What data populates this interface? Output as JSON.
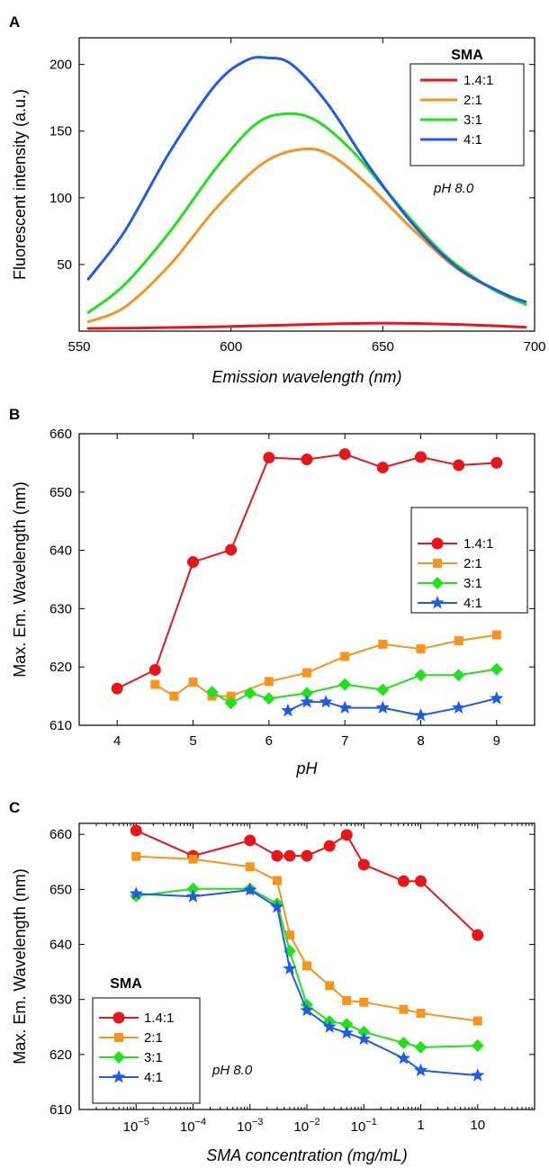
{
  "colors": {
    "1.4:1": "#e8161b",
    "2:1": "#f7941d",
    "3:1": "#22e01b",
    "4:1": "#1f5be8"
  },
  "chart_data": [
    {
      "panel": "A",
      "type": "line",
      "xlabel": "Emission wavelength (nm)",
      "ylabel": "Fluorescent intensity (a.u.)",
      "xlim": [
        550,
        700
      ],
      "ylim": [
        0,
        220
      ],
      "xticks": [
        550,
        600,
        650,
        700
      ],
      "yticks": [
        50,
        100,
        150,
        200
      ],
      "legend": {
        "title": "SMA",
        "placement": "top-right"
      },
      "annotation": "pH 8.0",
      "series": [
        {
          "name": "1.4:1",
          "x": [
            553,
            575,
            600,
            625,
            650,
            675,
            697
          ],
          "y": [
            2,
            2.5,
            3.5,
            5,
            6,
            5,
            3
          ]
        },
        {
          "name": "2:1",
          "x": [
            553,
            565,
            580,
            595,
            610,
            622,
            632,
            645,
            660,
            675,
            690,
            697
          ],
          "y": [
            7,
            18,
            50,
            92,
            125,
            136,
            133,
            110,
            76,
            46,
            28,
            22
          ]
        },
        {
          "name": "3:1",
          "x": [
            553,
            565,
            580,
            595,
            608,
            618,
            628,
            640,
            655,
            670,
            685,
            697
          ],
          "y": [
            14,
            35,
            75,
            122,
            155,
            163,
            158,
            135,
            95,
            58,
            33,
            20
          ]
        },
        {
          "name": "4:1",
          "x": [
            553,
            565,
            580,
            595,
            605,
            612,
            620,
            632,
            645,
            660,
            675,
            690,
            697
          ],
          "y": [
            39,
            75,
            135,
            185,
            203,
            205,
            200,
            170,
            125,
            80,
            47,
            28,
            22
          ]
        }
      ]
    },
    {
      "panel": "B",
      "type": "line",
      "xlabel": "pH",
      "ylabel": "Max. Em. Wavelength (nm)",
      "xlim": [
        3.5,
        9.5
      ],
      "ylim": [
        610,
        660
      ],
      "xticks": [
        4,
        5,
        6,
        7,
        8,
        9
      ],
      "yticks": [
        610,
        620,
        630,
        640,
        650,
        660
      ],
      "legend": {
        "title": "SMA",
        "placement": "right"
      },
      "series": [
        {
          "name": "1.4:1",
          "marker": "circle",
          "x": [
            4,
            4.5,
            5,
            5.5,
            6,
            6.5,
            7,
            7.5,
            8,
            8.5,
            9
          ],
          "y": [
            616.3,
            619.5,
            638,
            640.1,
            655.9,
            655.6,
            656.5,
            654.2,
            656,
            654.6,
            655
          ]
        },
        {
          "name": "2:1",
          "marker": "square",
          "x": [
            4.5,
            4.75,
            5,
            5.25,
            5.5,
            6,
            6.5,
            7,
            7.5,
            8,
            8.5,
            9
          ],
          "y": [
            617,
            615,
            617.4,
            615,
            615,
            617.5,
            619,
            621.8,
            623.9,
            623.1,
            624.5,
            625.5
          ]
        },
        {
          "name": "3:1",
          "marker": "diamond",
          "x": [
            5.25,
            5.5,
            5.75,
            6,
            6.5,
            7,
            7.5,
            8,
            8.5,
            9
          ],
          "y": [
            615.7,
            613.8,
            615.5,
            614.6,
            615.5,
            617,
            616.1,
            618.6,
            618.6,
            619.6
          ]
        },
        {
          "name": "4:1",
          "marker": "star",
          "x": [
            6.25,
            6.5,
            6.75,
            7,
            7.5,
            8,
            8.5,
            9
          ],
          "y": [
            612.5,
            614,
            614,
            613,
            613,
            611.7,
            613,
            614.6
          ]
        }
      ]
    },
    {
      "panel": "C",
      "type": "line",
      "xscale": "log",
      "xlabel": "SMA concentration (mg/mL)",
      "ylabel": "Max. Em. Wavelength (nm)",
      "xlim": [
        1e-06,
        100
      ],
      "ylim": [
        610,
        662
      ],
      "xticks": [
        "10^-5",
        "10^-4",
        "10^-3",
        "10^-2",
        "10^-1",
        "1",
        "10"
      ],
      "yticks": [
        610,
        620,
        630,
        640,
        650,
        660
      ],
      "legend": {
        "title": "SMA",
        "placement": "bottom-left"
      },
      "annotation": "pH 8.0",
      "series": [
        {
          "name": "1.4:1",
          "marker": "circle",
          "x": [
            1e-05,
            0.0001,
            0.001,
            0.003,
            0.005,
            0.01,
            0.025,
            0.05,
            0.1,
            0.5,
            1,
            10
          ],
          "y": [
            660.7,
            656.1,
            658.9,
            656.1,
            656.1,
            656.1,
            657.9,
            659.9,
            654.5,
            651.5,
            651.5,
            641.7
          ]
        },
        {
          "name": "2:1",
          "marker": "square",
          "x": [
            1e-05,
            0.0001,
            0.001,
            0.003,
            0.005,
            0.01,
            0.025,
            0.05,
            0.1,
            0.5,
            1,
            10
          ],
          "y": [
            656,
            655.5,
            654.1,
            651.6,
            641.7,
            636.1,
            632.5,
            629.8,
            629.5,
            628.2,
            627.5,
            626.1
          ]
        },
        {
          "name": "3:1",
          "marker": "diamond",
          "x": [
            1e-05,
            0.0001,
            0.001,
            0.003,
            0.005,
            0.01,
            0.025,
            0.05,
            0.1,
            0.5,
            1,
            10
          ],
          "y": [
            648.8,
            650.1,
            650.1,
            647.4,
            638.8,
            629,
            626,
            625.5,
            624.1,
            622.1,
            621.3,
            621.6
          ]
        },
        {
          "name": "4:1",
          "marker": "star",
          "x": [
            1e-05,
            0.0001,
            0.001,
            0.003,
            0.005,
            0.01,
            0.025,
            0.05,
            0.1,
            0.5,
            1,
            10
          ],
          "y": [
            649.2,
            648.7,
            649.9,
            646.8,
            635.6,
            628,
            625,
            623.9,
            622.8,
            619.3,
            617.1,
            616.2
          ]
        }
      ]
    }
  ]
}
